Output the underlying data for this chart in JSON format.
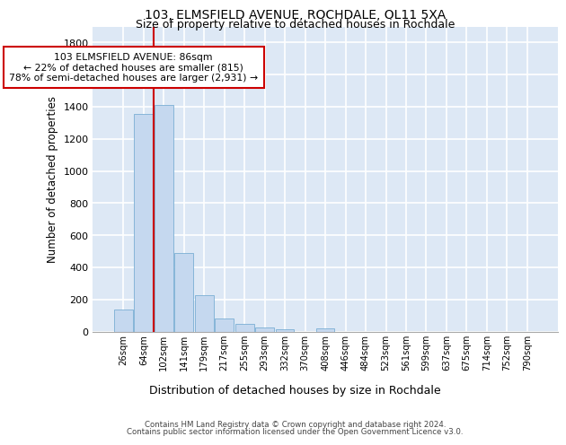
{
  "title1": "103, ELMSFIELD AVENUE, ROCHDALE, OL11 5XA",
  "title2": "Size of property relative to detached houses in Rochdale",
  "xlabel": "Distribution of detached houses by size in Rochdale",
  "ylabel": "Number of detached properties",
  "bar_color": "#c5d8ef",
  "bar_edge_color": "#7aafd4",
  "background_color": "#dde8f5",
  "grid_color": "#ffffff",
  "bin_labels": [
    "26sqm",
    "64sqm",
    "102sqm",
    "141sqm",
    "179sqm",
    "217sqm",
    "255sqm",
    "293sqm",
    "332sqm",
    "370sqm",
    "408sqm",
    "446sqm",
    "484sqm",
    "523sqm",
    "561sqm",
    "599sqm",
    "637sqm",
    "675sqm",
    "714sqm",
    "752sqm",
    "790sqm"
  ],
  "bar_heights": [
    135,
    1355,
    1410,
    490,
    225,
    80,
    45,
    25,
    15,
    0,
    20,
    0,
    0,
    0,
    0,
    0,
    0,
    0,
    0,
    0,
    0
  ],
  "ylim": [
    0,
    1900
  ],
  "yticks": [
    0,
    200,
    400,
    600,
    800,
    1000,
    1200,
    1400,
    1600,
    1800
  ],
  "vline_x": 1.5,
  "annotation_text": "103 ELMSFIELD AVENUE: 86sqm\n← 22% of detached houses are smaller (815)\n78% of semi-detached houses are larger (2,931) →",
  "annotation_box_color": "#ffffff",
  "annotation_box_edge": "#cc0000",
  "vline_color": "#cc0000",
  "footer1": "Contains HM Land Registry data © Crown copyright and database right 2024.",
  "footer2": "Contains public sector information licensed under the Open Government Licence v3.0."
}
